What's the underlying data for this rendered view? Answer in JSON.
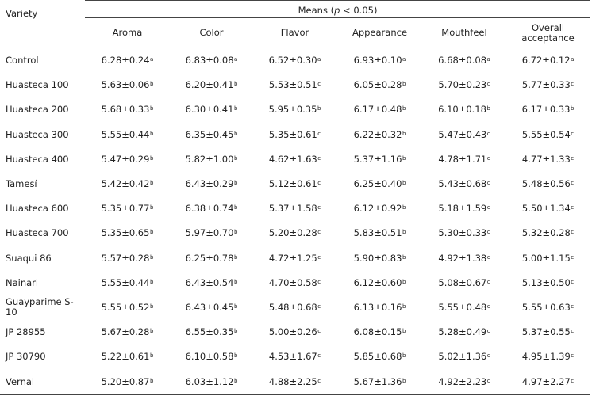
{
  "table": {
    "variety_header": "Variety",
    "means_header_prefix": "Means (",
    "means_header_p": "p",
    "means_header_suffix": " < 0.05)",
    "columns": [
      "Aroma",
      "Color",
      "Flavor",
      "Appearance",
      "Mouthfeel",
      "Overall acceptance"
    ],
    "rows": [
      {
        "variety": "Control",
        "cells": [
          [
            "6.28±0.24",
            "a"
          ],
          [
            "6.83±0.08",
            "a"
          ],
          [
            "6.52±0.30",
            "a"
          ],
          [
            "6.93±0.10",
            "a"
          ],
          [
            "6.68±0.08",
            "a"
          ],
          [
            "6.72±0.12",
            "a"
          ]
        ]
      },
      {
        "variety": "Huasteca 100",
        "cells": [
          [
            "5.63±0.06",
            "b"
          ],
          [
            "6.20±0.41",
            "b"
          ],
          [
            "5.53±0.51",
            "c"
          ],
          [
            "6.05±0.28",
            "b"
          ],
          [
            "5.70±0.23",
            "c"
          ],
          [
            "5.77±0.33",
            "c"
          ]
        ]
      },
      {
        "variety": "Huasteca 200",
        "cells": [
          [
            "5.68±0.33",
            "b"
          ],
          [
            "6.30±0.41",
            "b"
          ],
          [
            "5.95±0.35",
            "b"
          ],
          [
            "6.17±0.48",
            "b"
          ],
          [
            "6.10±0.18",
            "b"
          ],
          [
            "6.17±0.33",
            "b"
          ]
        ]
      },
      {
        "variety": "Huasteca 300",
        "cells": [
          [
            "5.55±0.44",
            "b"
          ],
          [
            "6.35±0.45",
            "b"
          ],
          [
            "5.35±0.61",
            "c"
          ],
          [
            "6.22±0.32",
            "b"
          ],
          [
            "5.47±0.43",
            "c"
          ],
          [
            "5.55±0.54",
            "c"
          ]
        ]
      },
      {
        "variety": "Huasteca 400",
        "cells": [
          [
            "5.47±0.29",
            "b"
          ],
          [
            "5.82±1.00",
            "b"
          ],
          [
            "4.62±1.63",
            "c"
          ],
          [
            "5.37±1.16",
            "b"
          ],
          [
            "4.78±1.71",
            "c"
          ],
          [
            "4.77±1.33",
            "c"
          ]
        ]
      },
      {
        "variety": "Tamesí",
        "cells": [
          [
            "5.42±0.42",
            "b"
          ],
          [
            "6.43±0.29",
            "b"
          ],
          [
            "5.12±0.61",
            "c"
          ],
          [
            "6.25±0.40",
            "b"
          ],
          [
            "5.43±0.68",
            "c"
          ],
          [
            "5.48±0.56",
            "c"
          ]
        ]
      },
      {
        "variety": "Huasteca 600",
        "cells": [
          [
            "5.35±0.77",
            "b"
          ],
          [
            "6.38±0.74",
            "b"
          ],
          [
            "5.37±1.58",
            "c"
          ],
          [
            "6.12±0.92",
            "b"
          ],
          [
            "5.18±1.59",
            "c"
          ],
          [
            "5.50±1.34",
            "c"
          ]
        ]
      },
      {
        "variety": "Huasteca 700",
        "cells": [
          [
            "5.35±0.65",
            "b"
          ],
          [
            "5.97±0.70",
            "b"
          ],
          [
            "5.20±0.28",
            "c"
          ],
          [
            "5.83±0.51",
            "b"
          ],
          [
            "5.30±0.33",
            "c"
          ],
          [
            "5.32±0.28",
            "c"
          ]
        ]
      },
      {
        "variety": "Suaqui 86",
        "cells": [
          [
            "5.57±0.28",
            "b"
          ],
          [
            "6.25±0.78",
            "b"
          ],
          [
            "4.72±1.25",
            "c"
          ],
          [
            "5.90±0.83",
            "b"
          ],
          [
            "4.92±1.38",
            "c"
          ],
          [
            "5.00±1.15",
            "c"
          ]
        ]
      },
      {
        "variety": "Nainari",
        "cells": [
          [
            "5.55±0.44",
            "b"
          ],
          [
            "6.43±0.54",
            "b"
          ],
          [
            "4.70±0.58",
            "c"
          ],
          [
            "6.12±0.60",
            "b"
          ],
          [
            "5.08±0.67",
            "c"
          ],
          [
            "5.13±0.50",
            "c"
          ]
        ]
      },
      {
        "variety": "Guayparime S-10",
        "cells": [
          [
            "5.55±0.52",
            "b"
          ],
          [
            "6.43±0.45",
            "b"
          ],
          [
            "5.48±0.68",
            "c"
          ],
          [
            "6.13±0.16",
            "b"
          ],
          [
            "5.55±0.48",
            "c"
          ],
          [
            "5.55±0.63",
            "c"
          ]
        ]
      },
      {
        "variety": "JP 28955",
        "cells": [
          [
            "5.67±0.28",
            "b"
          ],
          [
            "6.55±0.35",
            "b"
          ],
          [
            "5.00±0.26",
            "c"
          ],
          [
            "6.08±0.15",
            "b"
          ],
          [
            "5.28±0.49",
            "c"
          ],
          [
            "5.37±0.55",
            "c"
          ]
        ]
      },
      {
        "variety": "JP 30790",
        "cells": [
          [
            "5.22±0.61",
            "b"
          ],
          [
            "6.10±0.58",
            "b"
          ],
          [
            "4.53±1.67",
            "c"
          ],
          [
            "5.85±0.68",
            "b"
          ],
          [
            "5.02±1.36",
            "c"
          ],
          [
            "4.95±1.39",
            "c"
          ]
        ]
      },
      {
        "variety": "Vernal",
        "cells": [
          [
            "5.20±0.87",
            "b"
          ],
          [
            "6.03±1.12",
            "b"
          ],
          [
            "4.88±2.25",
            "c"
          ],
          [
            "5.67±1.36",
            "b"
          ],
          [
            "4.92±2.23",
            "c"
          ],
          [
            "4.97±2.27",
            "c"
          ]
        ]
      }
    ]
  }
}
